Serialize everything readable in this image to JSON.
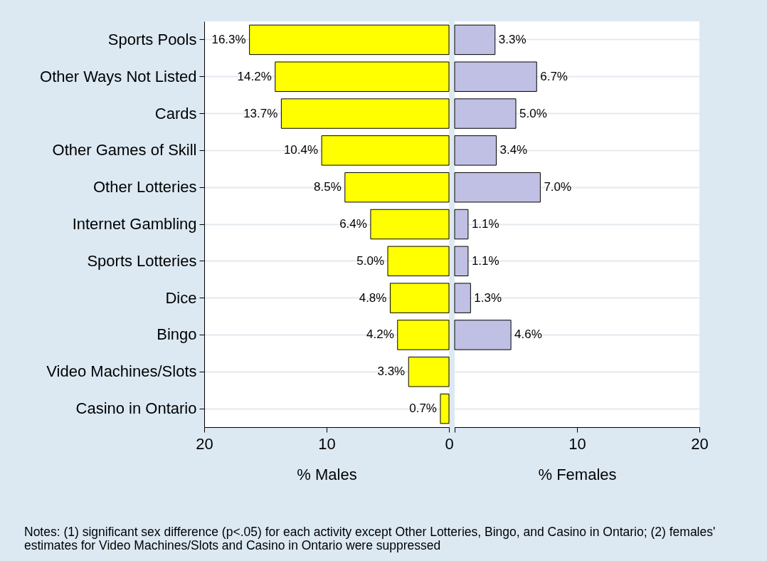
{
  "chart_data": [
    {
      "type": "bar",
      "orientation": "horizontal",
      "xlabel": "% Males",
      "categories": [
        "Sports Pools",
        "Other Ways Not Listed",
        "Cards",
        "Other Games of Skill",
        "Other Lotteries",
        "Internet Gambling",
        "Sports Lotteries",
        "Dice",
        "Bingo",
        "Video Machines/Slots",
        "Casino in Ontario"
      ],
      "series": [
        {
          "color": "#ffff00",
          "values": [
            16.3,
            14.2,
            13.7,
            10.4,
            8.5,
            6.4,
            5.0,
            4.8,
            4.2,
            3.3,
            0.7
          ],
          "value_labels": [
            "16.3%",
            "14.2%",
            "13.7%",
            "10.4%",
            "8.5%",
            "6.4%",
            "5.0%",
            "4.8%",
            "4.2%",
            "3.3%",
            "0.7%"
          ]
        }
      ],
      "xlim": [
        20,
        0
      ],
      "xticks": [
        20,
        10,
        0
      ],
      "grid": "y",
      "annotations": [
        "Notes: (1) significant sex difference (p<.05) for each activity except Other Lotteries, Bingo, and Casino in Ontario; (2) females' estimates for Video Machines/Slots and Casino in Ontario were suppressed"
      ]
    },
    {
      "type": "bar",
      "orientation": "horizontal",
      "xlabel": "% Females",
      "categories": [
        null,
        null,
        null,
        null,
        null,
        null,
        null,
        null,
        null,
        null,
        null
      ],
      "series": [
        {
          "color": "#c0c0e4",
          "values": [
            3.3,
            6.7,
            5.0,
            3.4,
            7.0,
            1.1,
            1.1,
            1.3,
            4.6,
            null,
            null
          ],
          "value_labels": [
            "3.3%",
            "6.7%",
            "5.0%",
            "3.4%",
            "7.0%",
            "1.1%",
            "1.1%",
            "1.3%",
            "4.6%",
            null,
            null
          ]
        }
      ],
      "xlim": [
        0,
        20
      ],
      "xticks": [
        {
          "value": 0,
          "label": null
        },
        10,
        20
      ],
      "grid": "y",
      "tick_labels": "x"
    }
  ]
}
